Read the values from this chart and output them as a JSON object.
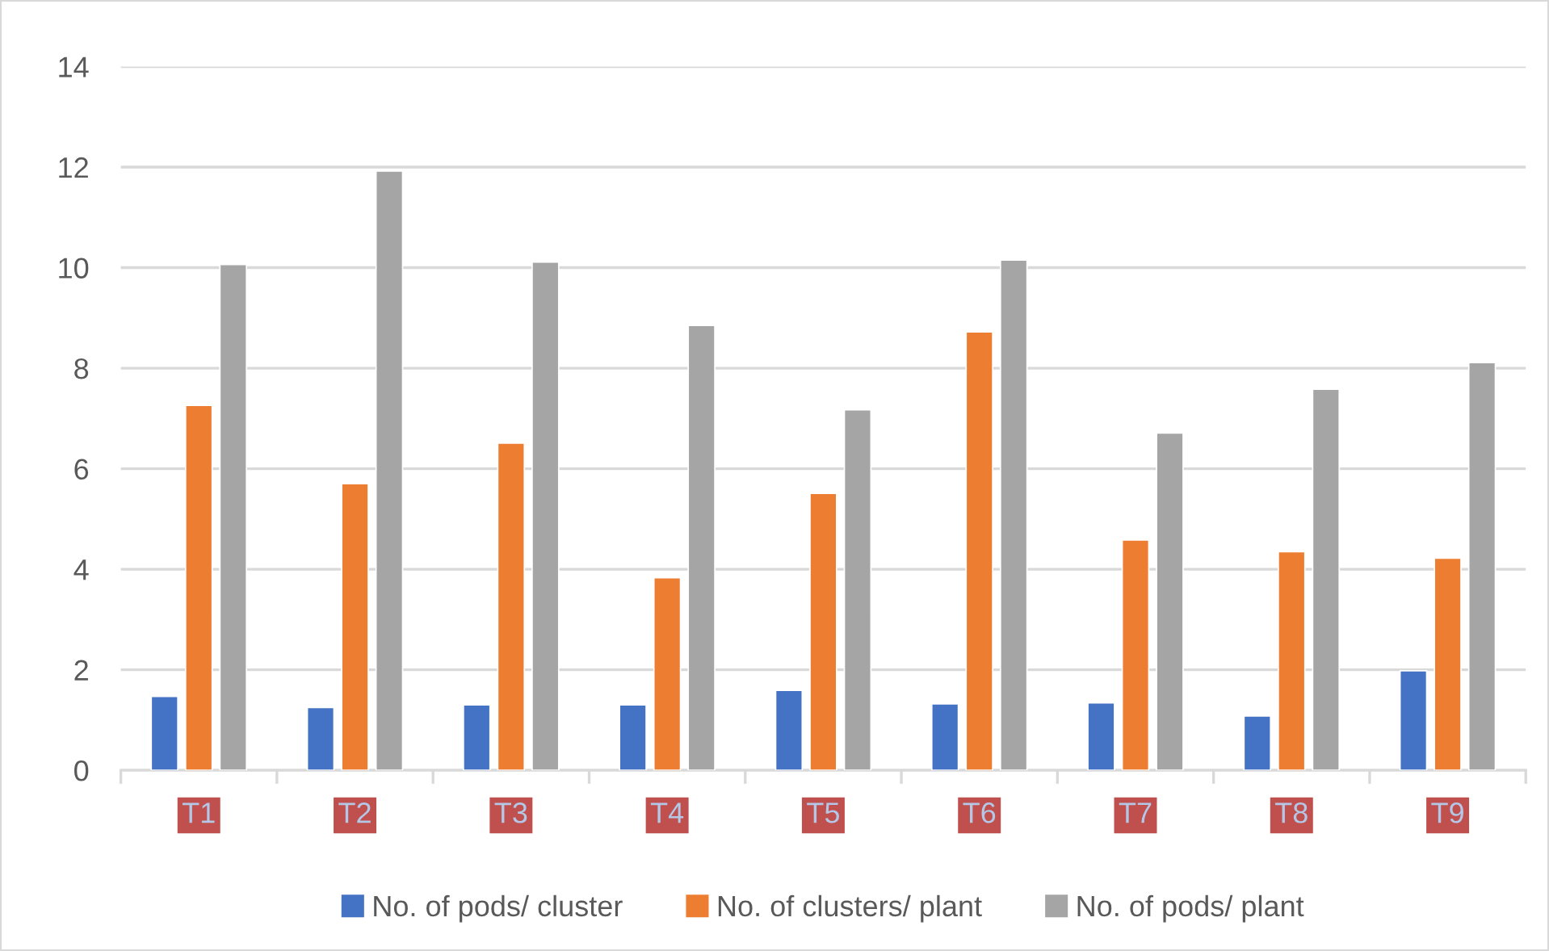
{
  "chart_data": {
    "type": "bar",
    "categories": [
      "T1",
      "T2",
      "T3",
      "T4",
      "T5",
      "T6",
      "T7",
      "T8",
      "T9"
    ],
    "series": [
      {
        "name": "No. of pods/ cluster",
        "color": "#4472c4",
        "values": [
          1.47,
          1.25,
          1.3,
          1.3,
          1.59,
          1.32,
          1.34,
          1.08,
          1.98
        ]
      },
      {
        "name": "No. of clusters/ plant",
        "color": "#ed7d31",
        "values": [
          7.26,
          5.7,
          6.51,
          3.83,
          5.51,
          8.72,
          4.58,
          4.35,
          4.22
        ]
      },
      {
        "name": "No. of pods/ plant",
        "color": "#a5a5a5",
        "values": [
          10.06,
          11.92,
          10.11,
          8.85,
          7.17,
          10.15,
          6.71,
          7.58,
          8.11
        ]
      }
    ],
    "ylim": [
      0,
      14
    ],
    "yticks": [
      0,
      2,
      4,
      6,
      8,
      10,
      12,
      14
    ],
    "grid": "y",
    "legend": "bottom"
  }
}
